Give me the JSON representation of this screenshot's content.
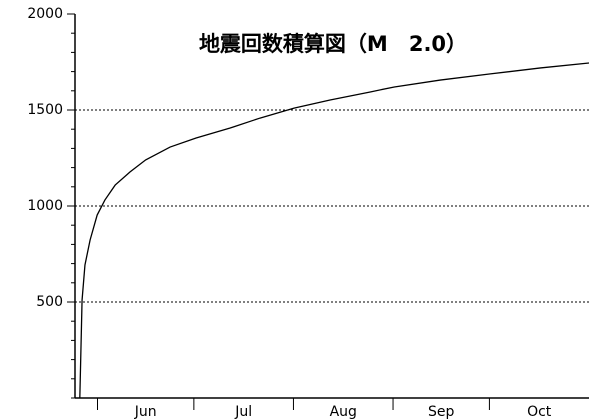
{
  "chart_data": {
    "type": "line",
    "title": "地震回数積算図（M　2.0）",
    "x": [
      1.5,
      2.2,
      3.1,
      4.7,
      6.9,
      9.3,
      12.5,
      17.1,
      22,
      29.6,
      37.7,
      48.3,
      57.6,
      68.2,
      79.4,
      91.9,
      99.4,
      113.7,
      129.3,
      144.9,
      160
    ],
    "series": [
      {
        "color": "#000000",
        "values": [
          0,
          510,
          693,
          823,
          953,
          1031,
          1109,
          1177,
          1240,
          1307,
          1354,
          1406,
          1458,
          1510,
          1552,
          1594,
          1620,
          1656,
          1688,
          1719,
          1745
        ]
      }
    ],
    "xlim": [
      0,
      160
    ],
    "xticks": [
      {
        "value": 22,
        "label": "Jun"
      },
      {
        "value": 52.5,
        "label": "Jul"
      },
      {
        "value": 83.5,
        "label": "Aug"
      },
      {
        "value": 114,
        "label": "Sep"
      },
      {
        "value": 144.5,
        "label": "Oct"
      }
    ],
    "month_boundaries": [
      7,
      37,
      68,
      99,
      129
    ],
    "ylim": [
      0,
      2000
    ],
    "yticks": [
      500,
      1000,
      1500,
      2000
    ],
    "yminor_ticks": [
      0,
      100,
      200,
      300,
      400,
      600,
      700,
      800,
      900,
      1100,
      1200,
      1300,
      1400,
      1600,
      1700,
      1800,
      1900
    ],
    "grid": true
  }
}
